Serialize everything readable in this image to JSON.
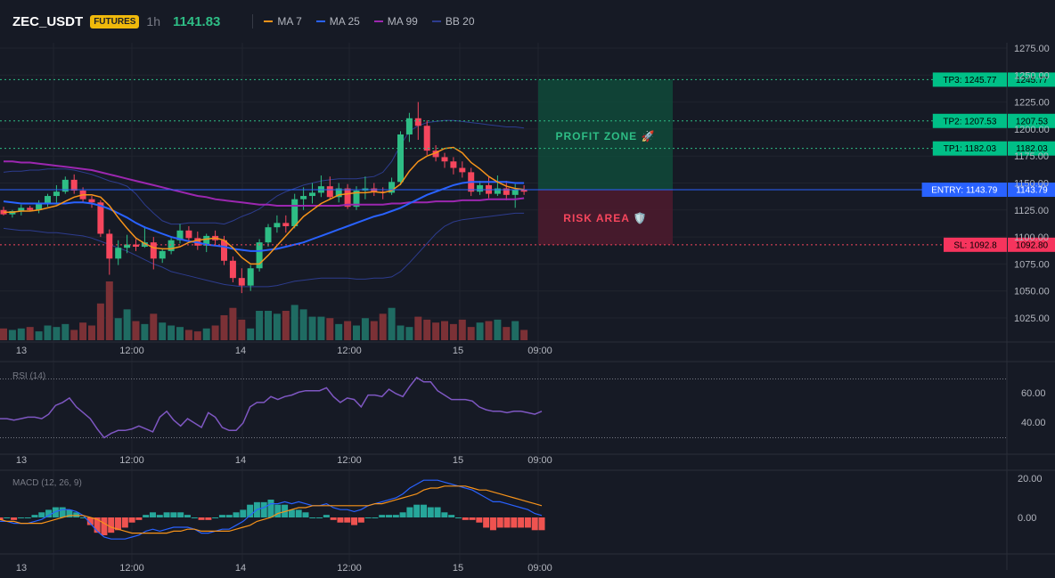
{
  "header": {
    "symbol": "ZEC_USDT",
    "badge": "FUTURES",
    "timeframe": "1h",
    "last_price": "1141.83",
    "legend": [
      {
        "label": "MA 7",
        "color": "#f7931a"
      },
      {
        "label": "MA 25",
        "color": "#2962ff"
      },
      {
        "label": "MA 99",
        "color": "#9c27b0"
      },
      {
        "label": "BB 20",
        "color": "#2d3c8e"
      }
    ]
  },
  "colors": {
    "up": "#26a69a",
    "down": "#ef5350",
    "candle_up": "#2ebd85",
    "candle_down": "#f6465d",
    "background": "#161a25"
  },
  "price_axis": [
    "1275.00",
    "1250.00",
    "1225.00",
    "1200.00",
    "1175.00",
    "1150.00",
    "1125.00",
    "1100.00",
    "1075.00",
    "1050.00",
    "1025.00"
  ],
  "time_axis": [
    "13",
    "12:00",
    "14",
    "12:00",
    "15",
    "09:00"
  ],
  "levels": {
    "tp3": {
      "label": "TP3: 1245.77",
      "value": "1245.77",
      "price": 1245.77
    },
    "tp2": {
      "label": "TP2: 1207.53",
      "value": "1207.53",
      "price": 1207.53
    },
    "tp1": {
      "label": "TP1: 1182.03",
      "value": "1182.03",
      "price": 1182.03
    },
    "entry": {
      "label": "ENTRY: 1143.79",
      "value": "1143.79",
      "price": 1143.79
    },
    "sl": {
      "label": "SL: 1092.8",
      "value": "1092.80",
      "price": 1092.8
    }
  },
  "zones": {
    "profit": "PROFIT ZONE 🚀",
    "risk": "RISK AREA 🛡️"
  },
  "rsi": {
    "label": "RSI (14)",
    "axis": [
      "60.00",
      "40.00"
    ],
    "upper": 70,
    "lower": 30,
    "values": [
      43,
      43,
      42,
      43,
      44,
      44,
      43,
      46,
      52,
      54,
      57,
      51,
      47,
      43,
      36,
      30,
      33,
      35,
      35,
      36,
      38,
      36,
      34,
      44,
      48,
      42,
      38,
      43,
      40,
      37,
      47,
      44,
      37,
      35,
      35,
      40,
      51,
      54,
      54,
      58,
      56,
      58,
      59,
      61,
      62,
      62,
      62,
      64,
      58,
      54,
      57,
      56,
      51,
      59,
      59,
      58,
      63,
      60,
      58,
      65,
      71,
      68,
      68,
      62,
      59,
      56,
      56,
      56,
      55,
      51,
      49,
      48,
      48,
      47,
      48,
      48,
      47,
      46,
      48
    ]
  },
  "macd": {
    "label": "MACD (12, 26, 9)",
    "axis": [
      "20.00",
      "0.00"
    ],
    "macd_line": [
      -2,
      -2,
      -3,
      -3,
      -3,
      -2,
      -1,
      1,
      3,
      4,
      4,
      3,
      1,
      -3,
      -7,
      -10,
      -11,
      -11,
      -11,
      -10,
      -9,
      -7,
      -6,
      -7,
      -6,
      -5,
      -5,
      -5,
      -6,
      -8,
      -8,
      -7,
      -6,
      -6,
      -4,
      -2,
      1,
      4,
      5,
      7,
      7,
      8,
      7,
      8,
      7,
      6,
      6,
      7,
      5,
      4,
      4,
      3,
      4,
      6,
      7,
      8,
      9,
      10,
      12,
      15,
      17,
      19,
      19,
      19,
      18,
      17,
      16,
      15,
      14,
      12,
      10,
      8,
      8,
      7,
      6,
      5,
      4,
      2,
      1
    ],
    "signal_line": [
      -1,
      -2,
      -2,
      -3,
      -3,
      -3,
      -3,
      -2,
      -1,
      0,
      1,
      1,
      1,
      0,
      -1,
      -3,
      -5,
      -6,
      -7,
      -8,
      -8,
      -8,
      -8,
      -8,
      -8,
      -7,
      -7,
      -6,
      -6,
      -7,
      -7,
      -7,
      -7,
      -7,
      -6,
      -5,
      -4,
      -2,
      -1,
      0,
      2,
      3,
      4,
      5,
      5,
      6,
      6,
      6,
      6,
      6,
      6,
      6,
      6,
      6,
      7,
      7,
      8,
      9,
      10,
      11,
      12,
      14,
      15,
      15,
      16,
      16,
      16,
      16,
      15,
      14,
      14,
      13,
      12,
      11,
      10,
      9,
      8,
      7,
      6
    ]
  },
  "chart_data": {
    "type": "candlestick",
    "title": "ZEC_USDT 1h",
    "ylim": [
      1010,
      1285
    ],
    "candles": [
      [
        1125,
        1128,
        1120,
        1121
      ],
      [
        1121,
        1125,
        1118,
        1124
      ],
      [
        1124,
        1130,
        1120,
        1127
      ],
      [
        1127,
        1129,
        1124,
        1125
      ],
      [
        1125,
        1134,
        1122,
        1131
      ],
      [
        1131,
        1140,
        1128,
        1138
      ],
      [
        1138,
        1148,
        1130,
        1142
      ],
      [
        1142,
        1156,
        1140,
        1153
      ],
      [
        1153,
        1158,
        1140,
        1143
      ],
      [
        1143,
        1146,
        1132,
        1135
      ],
      [
        1135,
        1138,
        1127,
        1132
      ],
      [
        1132,
        1134,
        1100,
        1103
      ],
      [
        1103,
        1107,
        1065,
        1080
      ],
      [
        1080,
        1097,
        1074,
        1090
      ],
      [
        1090,
        1102,
        1085,
        1093
      ],
      [
        1093,
        1098,
        1087,
        1091
      ],
      [
        1091,
        1110,
        1090,
        1095
      ],
      [
        1095,
        1100,
        1070,
        1080
      ],
      [
        1080,
        1089,
        1076,
        1087
      ],
      [
        1087,
        1099,
        1084,
        1097
      ],
      [
        1097,
        1112,
        1094,
        1106
      ],
      [
        1106,
        1110,
        1096,
        1099
      ],
      [
        1099,
        1105,
        1088,
        1092
      ],
      [
        1092,
        1103,
        1086,
        1101
      ],
      [
        1101,
        1106,
        1093,
        1097
      ],
      [
        1097,
        1101,
        1074,
        1078
      ],
      [
        1078,
        1082,
        1058,
        1062
      ],
      [
        1062,
        1071,
        1048,
        1055
      ],
      [
        1055,
        1074,
        1050,
        1071
      ],
      [
        1071,
        1098,
        1068,
        1095
      ],
      [
        1095,
        1112,
        1091,
        1109
      ],
      [
        1109,
        1120,
        1104,
        1113
      ],
      [
        1113,
        1120,
        1104,
        1110
      ],
      [
        1110,
        1140,
        1108,
        1135
      ],
      [
        1135,
        1146,
        1125,
        1138
      ],
      [
        1138,
        1150,
        1131,
        1141
      ],
      [
        1141,
        1157,
        1137,
        1147
      ],
      [
        1147,
        1156,
        1135,
        1137
      ],
      [
        1137,
        1150,
        1132,
        1145
      ],
      [
        1145,
        1149,
        1126,
        1128
      ],
      [
        1128,
        1147,
        1125,
        1143
      ],
      [
        1143,
        1156,
        1135,
        1145
      ],
      [
        1145,
        1150,
        1138,
        1142
      ],
      [
        1142,
        1146,
        1135,
        1141
      ],
      [
        1141,
        1155,
        1139,
        1151
      ],
      [
        1151,
        1198,
        1148,
        1195
      ],
      [
        1195,
        1215,
        1188,
        1210
      ],
      [
        1210,
        1225,
        1190,
        1203
      ],
      [
        1203,
        1208,
        1176,
        1180
      ],
      [
        1180,
        1185,
        1170,
        1174
      ],
      [
        1174,
        1178,
        1164,
        1170
      ],
      [
        1170,
        1174,
        1158,
        1164
      ],
      [
        1164,
        1170,
        1155,
        1160
      ],
      [
        1160,
        1164,
        1138,
        1142
      ],
      [
        1142,
        1152,
        1139,
        1148
      ],
      [
        1148,
        1156,
        1136,
        1140
      ],
      [
        1140,
        1157,
        1138,
        1145
      ],
      [
        1145,
        1152,
        1134,
        1139
      ],
      [
        1139,
        1149,
        1127,
        1144
      ],
      [
        1144,
        1148,
        1139,
        1142
      ]
    ],
    "volume": [
      8,
      7,
      8,
      9,
      6,
      10,
      9,
      11,
      7,
      12,
      10,
      25,
      40,
      15,
      21,
      13,
      11,
      18,
      12,
      10,
      9,
      7,
      6,
      8,
      10,
      17,
      22,
      14,
      8,
      20,
      20,
      18,
      20,
      24,
      21,
      16,
      16,
      15,
      11,
      13,
      10,
      15,
      13,
      18,
      22,
      10,
      9,
      16,
      14,
      12,
      13,
      11,
      14,
      9,
      12,
      13,
      14,
      9,
      13,
      7
    ],
    "ma7": [
      1123,
      1123,
      1124,
      1124,
      1125,
      1127,
      1129,
      1133,
      1137,
      1139,
      1139,
      1137,
      1129,
      1118,
      1108,
      1099,
      1094,
      1090,
      1089,
      1089,
      1091,
      1095,
      1097,
      1098,
      1099,
      1097,
      1090,
      1081,
      1075,
      1075,
      1083,
      1092,
      1101,
      1110,
      1119,
      1125,
      1131,
      1135,
      1139,
      1140,
      1141,
      1141,
      1142,
      1141,
      1143,
      1149,
      1161,
      1170,
      1175,
      1178,
      1182,
      1183,
      1178,
      1169,
      1163,
      1156,
      1151,
      1147,
      1145,
      1144
    ],
    "ma25": [
      1133,
      1132,
      1131,
      1131,
      1131,
      1131,
      1131,
      1131,
      1132,
      1132,
      1131,
      1129,
      1126,
      1122,
      1118,
      1113,
      1109,
      1106,
      1103,
      1100,
      1098,
      1096,
      1095,
      1093,
      1092,
      1091,
      1089,
      1088,
      1087,
      1087,
      1088,
      1089,
      1091,
      1093,
      1095,
      1098,
      1101,
      1104,
      1107,
      1110,
      1113,
      1116,
      1119,
      1121,
      1124,
      1127,
      1131,
      1135,
      1139,
      1142,
      1145,
      1148,
      1150,
      1151,
      1151,
      1151,
      1151,
      1151,
      1150,
      1150
    ],
    "ma99": [
      1170,
      1170,
      1169,
      1169,
      1168,
      1167,
      1166,
      1165,
      1164,
      1163,
      1162,
      1160,
      1158,
      1156,
      1154,
      1152,
      1150,
      1148,
      1146,
      1144,
      1142,
      1140,
      1138,
      1137,
      1135,
      1134,
      1133,
      1132,
      1131,
      1130,
      1130,
      1129,
      1129,
      1129,
      1129,
      1129,
      1129,
      1129,
      1129,
      1130,
      1130,
      1130,
      1130,
      1130,
      1131,
      1131,
      1132,
      1132,
      1132,
      1133,
      1133,
      1133,
      1134,
      1134,
      1134,
      1135,
      1135,
      1135,
      1135,
      1136
    ],
    "bb_upper": [
      1160,
      1161,
      1161,
      1162,
      1162,
      1163,
      1163,
      1163,
      1162,
      1160,
      1158,
      1155,
      1152,
      1150,
      1147,
      1140,
      1130,
      1122,
      1115,
      1112,
      1112,
      1113,
      1113,
      1113,
      1113,
      1112,
      1115,
      1119,
      1122,
      1126,
      1132,
      1138,
      1142,
      1145,
      1148,
      1150,
      1152,
      1153,
      1154,
      1154,
      1154,
      1155,
      1156,
      1160,
      1170,
      1185,
      1198,
      1203,
      1206,
      1207,
      1208,
      1208,
      1207,
      1206,
      1205,
      1204,
      1203,
      1202,
      1202,
      1201
    ],
    "bb_lower": [
      1108,
      1107,
      1106,
      1106,
      1105,
      1104,
      1104,
      1103,
      1102,
      1101,
      1099,
      1096,
      1093,
      1090,
      1087,
      1083,
      1079,
      1075,
      1072,
      1068,
      1066,
      1064,
      1062,
      1060,
      1058,
      1056,
      1055,
      1054,
      1054,
      1054,
      1054,
      1055,
      1057,
      1059,
      1060,
      1061,
      1062,
      1062,
      1062,
      1062,
      1061,
      1061,
      1062,
      1062,
      1063,
      1068,
      1076,
      1085,
      1094,
      1103,
      1110,
      1114,
      1116,
      1117,
      1118,
      1119,
      1120,
      1121,
      1122,
      1122
    ]
  }
}
